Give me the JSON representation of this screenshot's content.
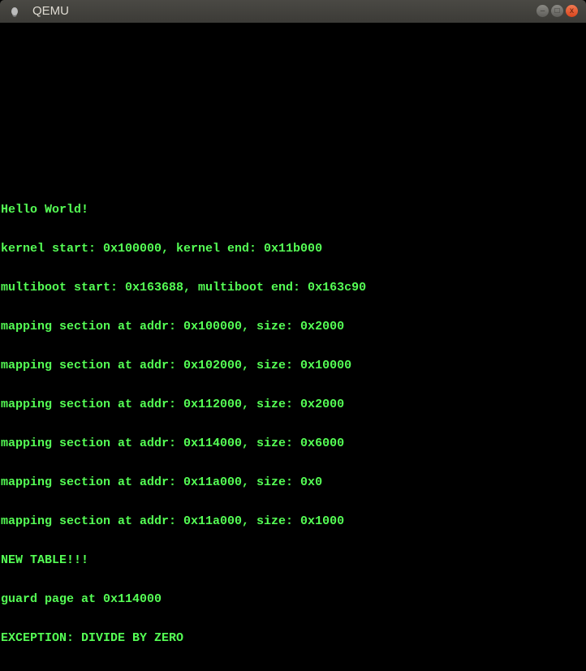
{
  "window": {
    "title": "QEMU",
    "minimize": "–",
    "maximize": "□",
    "close": "x"
  },
  "console": {
    "color": "#55ff55",
    "lines": [
      "Hello World!",
      "kernel start: 0x100000, kernel end: 0x11b000",
      "multiboot start: 0x163688, multiboot end: 0x163c90",
      "mapping section at addr: 0x100000, size: 0x2000",
      "mapping section at addr: 0x102000, size: 0x10000",
      "mapping section at addr: 0x112000, size: 0x2000",
      "mapping section at addr: 0x114000, size: 0x6000",
      "mapping section at addr: 0x11a000, size: 0x0",
      "mapping section at addr: 0x11a000, size: 0x1000",
      "NEW TABLE!!!",
      "guard page at 0x114000",
      "EXCEPTION: DIVIDE BY ZERO"
    ]
  }
}
